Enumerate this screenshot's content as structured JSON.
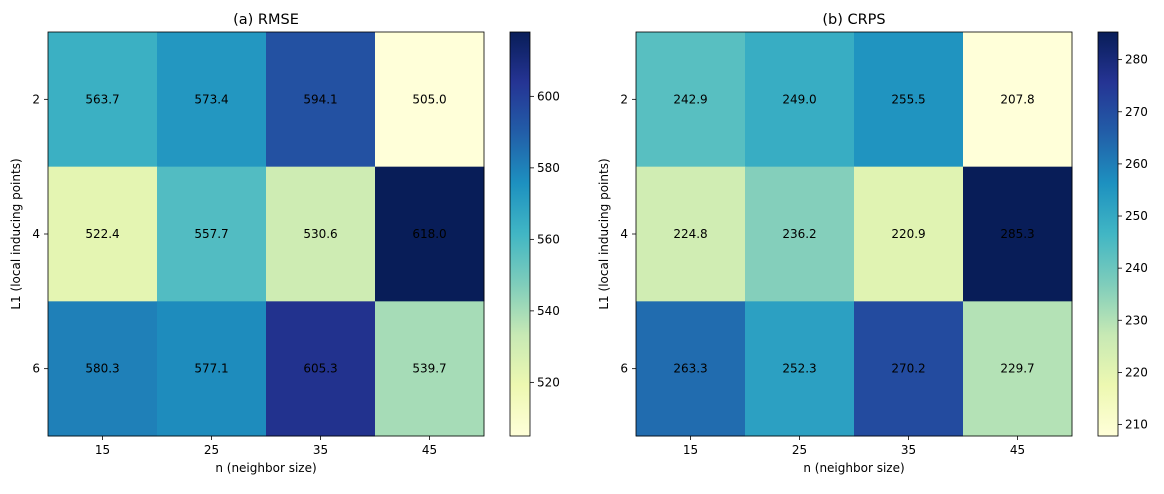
{
  "chart_data": [
    {
      "type": "heatmap",
      "title": "(a) RMSE",
      "xlabel": "n (neighbor size)",
      "ylabel": "L1 (local inducing points)",
      "x_categories": [
        "15",
        "25",
        "35",
        "45"
      ],
      "y_categories": [
        "2",
        "4",
        "6"
      ],
      "values": [
        [
          563.7,
          573.4,
          594.1,
          505.0
        ],
        [
          522.4,
          557.7,
          530.6,
          618.0
        ],
        [
          580.3,
          577.1,
          605.3,
          539.7
        ]
      ],
      "value_labels": [
        [
          "563.7",
          "573.4",
          "594.1",
          "505.0"
        ],
        [
          "522.4",
          "557.7",
          "530.6",
          "618.0"
        ],
        [
          "580.3",
          "577.1",
          "605.3",
          "539.7"
        ]
      ],
      "vmin": 505.0,
      "vmax": 618.0,
      "colormap": "YlGnBu",
      "colorbar_ticks": [
        520,
        540,
        560,
        580,
        600
      ],
      "colorbar_tick_labels": [
        "520",
        "540",
        "560",
        "580",
        "600"
      ]
    },
    {
      "type": "heatmap",
      "title": "(b) CRPS",
      "xlabel": "n (neighbor size)",
      "ylabel": "L1 (local inducing points)",
      "x_categories": [
        "15",
        "25",
        "35",
        "45"
      ],
      "y_categories": [
        "2",
        "4",
        "6"
      ],
      "values": [
        [
          242.9,
          249.0,
          255.5,
          207.8
        ],
        [
          224.8,
          236.2,
          220.9,
          285.3
        ],
        [
          263.3,
          252.3,
          270.2,
          229.7
        ]
      ],
      "value_labels": [
        [
          "242.9",
          "249.0",
          "255.5",
          "207.8"
        ],
        [
          "224.8",
          "236.2",
          "220.9",
          "285.3"
        ],
        [
          "263.3",
          "252.3",
          "270.2",
          "229.7"
        ]
      ],
      "vmin": 207.8,
      "vmax": 285.3,
      "colormap": "YlGnBu",
      "colorbar_ticks": [
        210,
        220,
        230,
        240,
        250,
        260,
        270,
        280
      ],
      "colorbar_tick_labels": [
        "210",
        "220",
        "230",
        "240",
        "250",
        "260",
        "270",
        "280"
      ]
    }
  ],
  "colors": {
    "ylgnbu": [
      "#ffffd9",
      "#edf8b1",
      "#c7e9b4",
      "#7fcdbb",
      "#41b6c4",
      "#1d91c0",
      "#225ea8",
      "#253494",
      "#081d58"
    ],
    "text": "#000000",
    "axis": "#000000"
  }
}
